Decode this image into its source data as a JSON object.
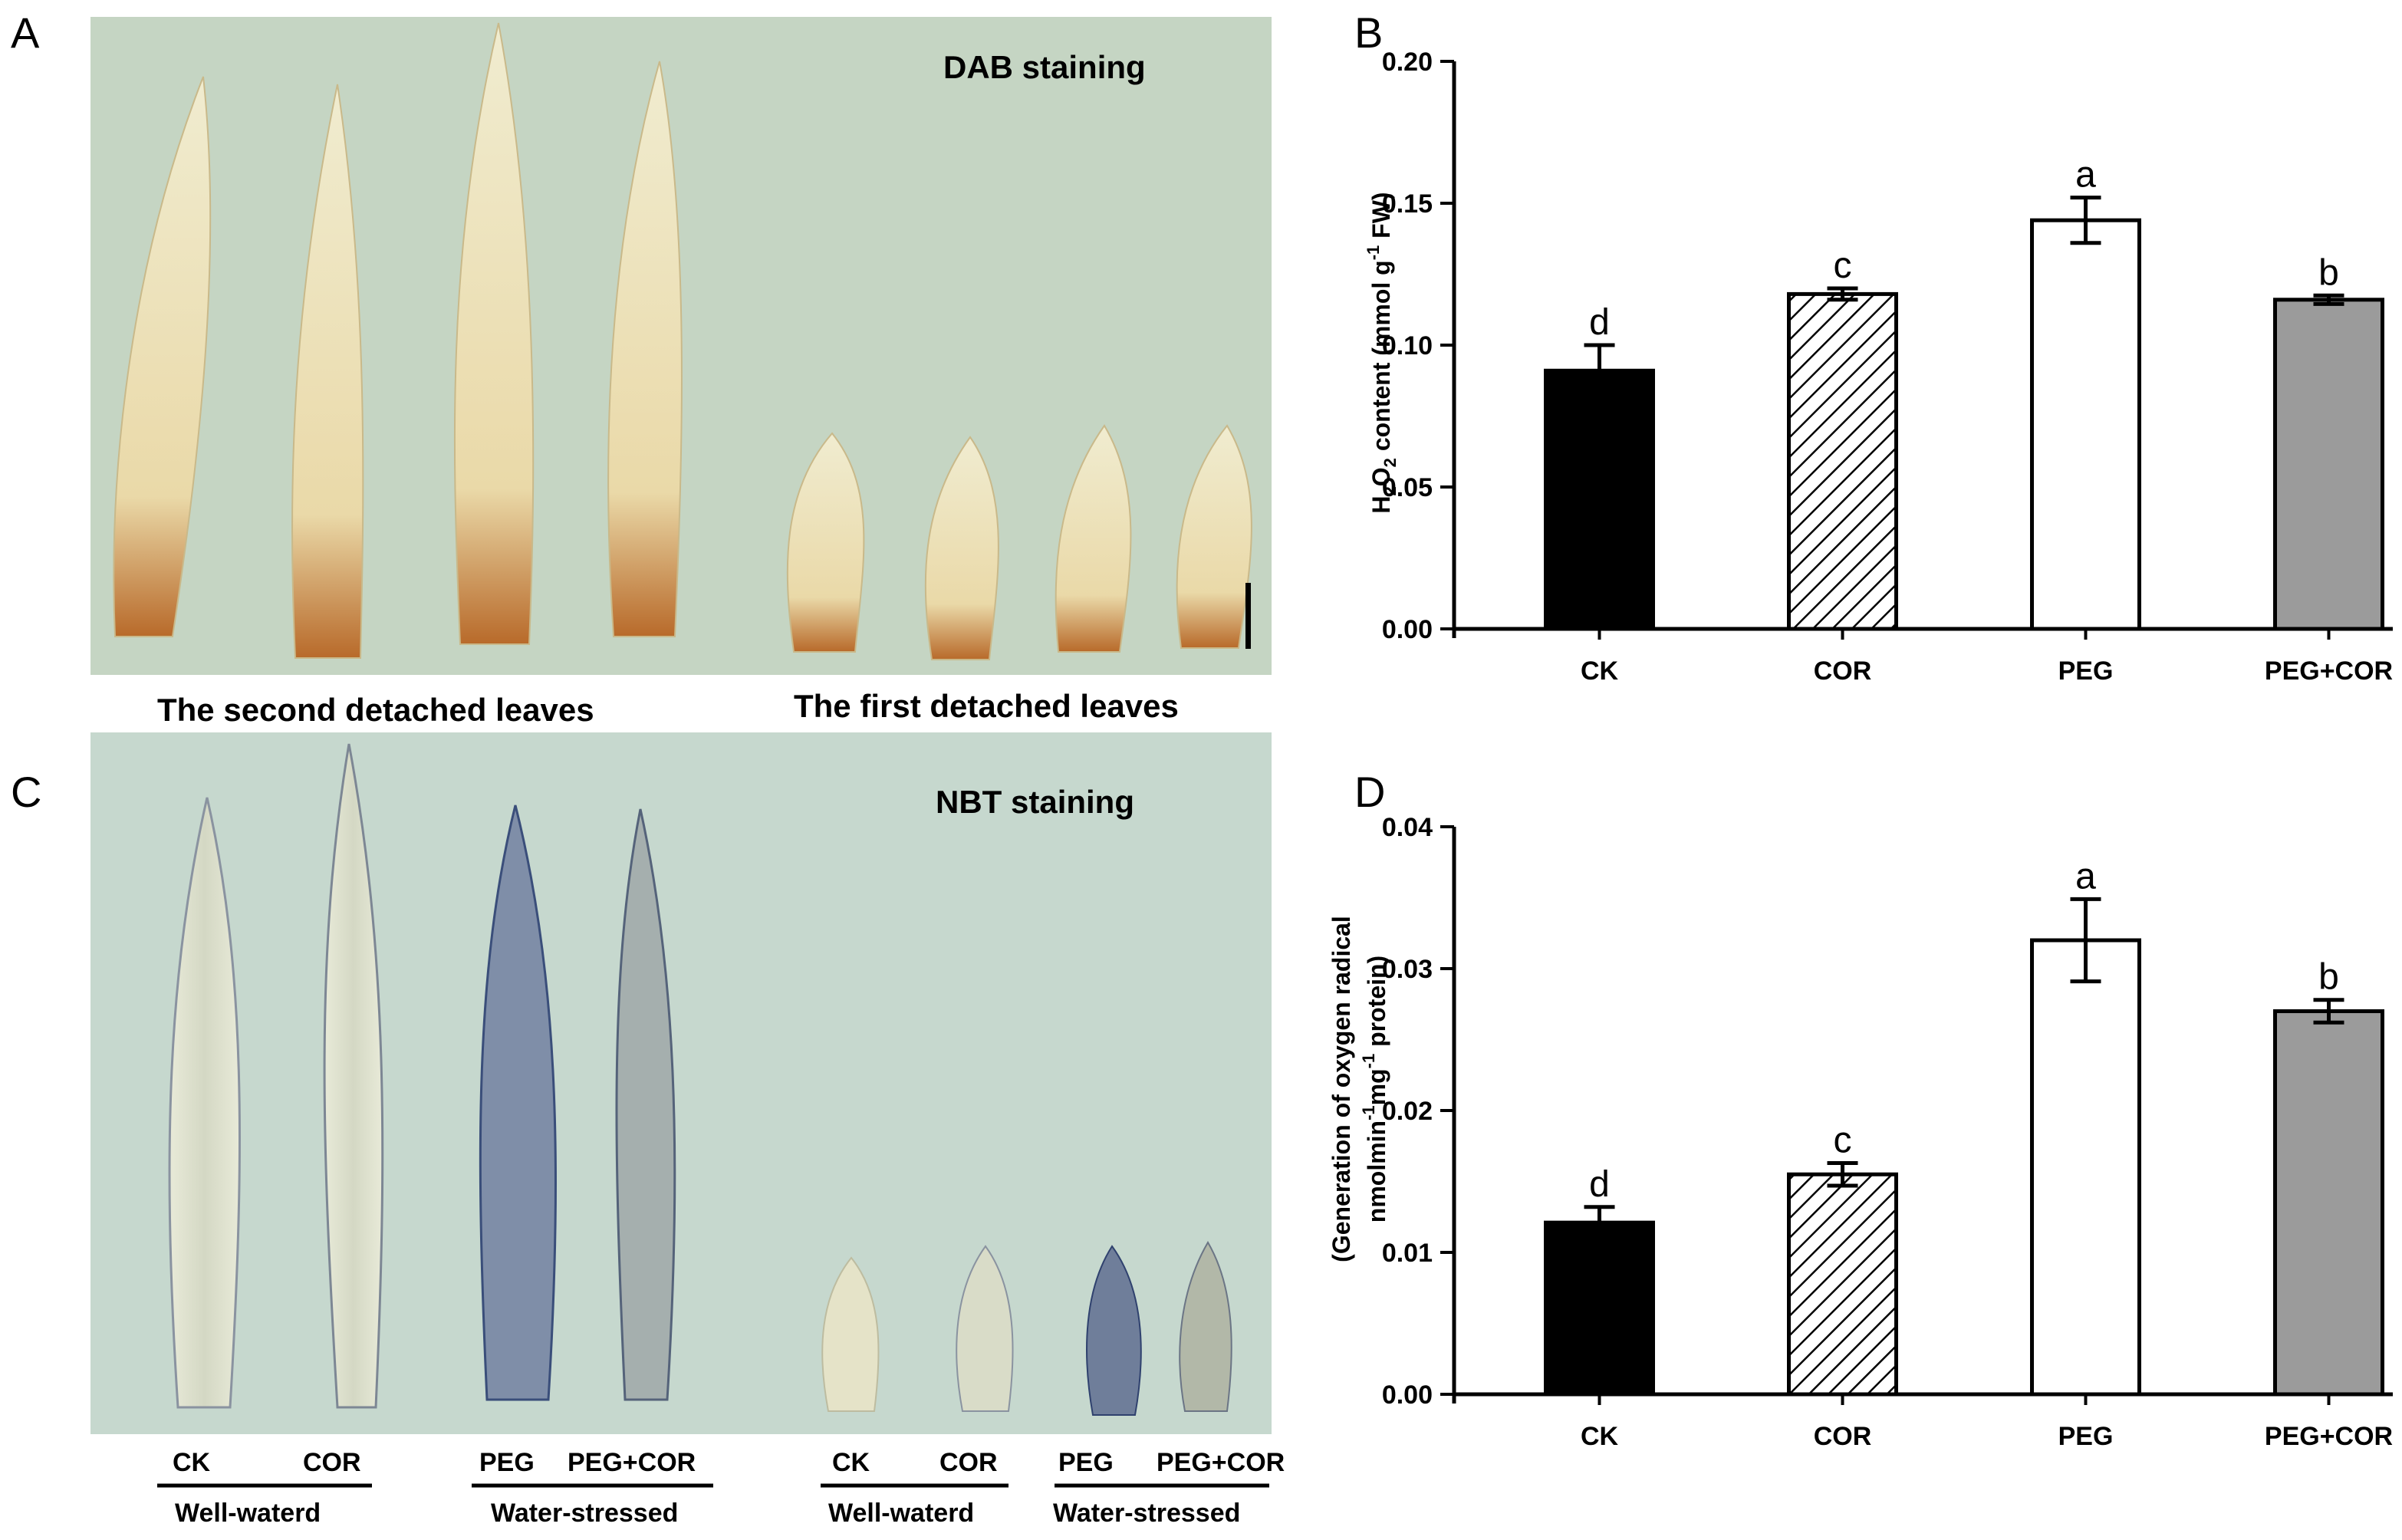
{
  "panels": {
    "A": {
      "label": "A",
      "stain": "DAB staining"
    },
    "B": {
      "label": "B"
    },
    "C": {
      "label": "C",
      "stain": "NBT staining"
    },
    "D": {
      "label": "D"
    }
  },
  "photo_captions": {
    "second": "The second detached leaves",
    "first": "The first detached leaves"
  },
  "nbt_labels": {
    "ck1": "CK",
    "cor1": "COR",
    "peg1": "PEG",
    "pegcor1": "PEG+COR",
    "ck2": "CK",
    "cor2": "COR",
    "peg2": "PEG",
    "pegcor2": "PEG+COR",
    "ww1": "Well-waterd",
    "ws1": "Water-stressed",
    "ww2": "Well-waterd",
    "ws2": "Water-stressed"
  },
  "colors": {
    "dab_background": "#c5d5c3",
    "nbt_background": "#c6d8ce",
    "bar_ck": "#000000",
    "bar_peg": "#ffffff",
    "bar_pegcor": "#9b9b9b"
  },
  "chart_data": [
    {
      "type": "bar",
      "panel": "B",
      "categories": [
        "CK",
        "COR",
        "PEG",
        "PEG+COR"
      ],
      "values": [
        0.091,
        0.118,
        0.144,
        0.116
      ],
      "errors": [
        0.009,
        0.002,
        0.008,
        0.0015
      ],
      "significance": [
        "d",
        "c",
        "a",
        "b"
      ],
      "fills": [
        "solid-black",
        "hatched",
        "white",
        "gray"
      ],
      "ylabel": "H2O2 content (mmol g-1 FW)",
      "ylim": [
        0,
        0.2
      ],
      "yticks": [
        "0.00",
        "0.05",
        "0.10",
        "0.15",
        "0.20"
      ],
      "grid": false
    },
    {
      "type": "bar",
      "panel": "D",
      "categories": [
        "CK",
        "COR",
        "PEG",
        "PEG+COR"
      ],
      "values": [
        0.0121,
        0.0155,
        0.032,
        0.027
      ],
      "errors": [
        0.0011,
        0.0008,
        0.0029,
        0.0008
      ],
      "significance": [
        "d",
        "c",
        "a",
        "b"
      ],
      "fills": [
        "solid-black",
        "hatched",
        "white",
        "gray"
      ],
      "ylabel_line1": "(Generation of oxygen radical",
      "ylabel_line2": "nmolmin-1mg-1 protein)",
      "ylim": [
        0,
        0.04
      ],
      "yticks": [
        "0.00",
        "0.01",
        "0.02",
        "0.03",
        "0.04"
      ],
      "grid": false
    }
  ]
}
